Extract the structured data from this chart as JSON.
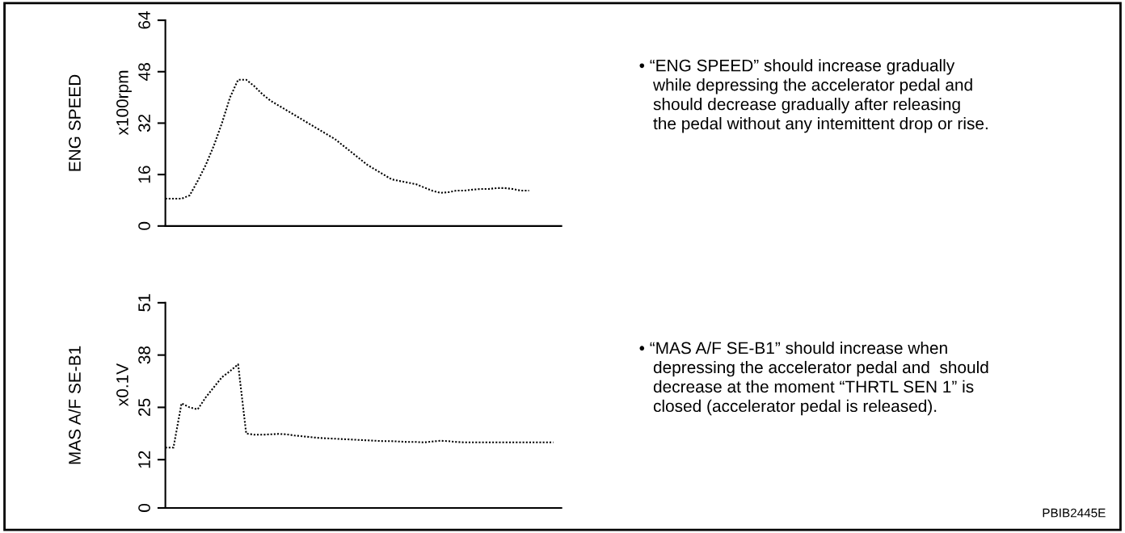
{
  "chart_data": [
    {
      "type": "line",
      "ylabel": "ENG SPEED",
      "categories": [
        null,
        null,
        null,
        null,
        null,
        null,
        null,
        null,
        null,
        null,
        null,
        null,
        null,
        null,
        null,
        null,
        null,
        null,
        null,
        null,
        null,
        null,
        null,
        null,
        null,
        null,
        null,
        null,
        null,
        null,
        null,
        null,
        null,
        null,
        null,
        null,
        null,
        null,
        null,
        null,
        null,
        null,
        null,
        null,
        null,
        null,
        null,
        null,
        null,
        null
      ],
      "series": [
        {
          "color": "#000000",
          "values": [
            8.5,
            8.5,
            8.5,
            9.5,
            14,
            19,
            25,
            32,
            40,
            45.5,
            45.5,
            43.5,
            41,
            39,
            37.5,
            36,
            34.5,
            33,
            31.5,
            30,
            28.5,
            27,
            25,
            23,
            21,
            19,
            17.5,
            16,
            14.5,
            14,
            13.5,
            13,
            12,
            11,
            10.3,
            10.5,
            11,
            11,
            11.3,
            11.5,
            11.5,
            11.8,
            11.8,
            11.5,
            11,
            11,
            null,
            null,
            null,
            null
          ]
        }
      ],
      "ylim": [
        0,
        64
      ],
      "yticks": [
        0,
        16,
        32,
        48,
        64
      ],
      "line_style": "dotted",
      "tick_labels": "y",
      "annotations": [
        "x100rpm",
        "• “ENG SPEED” should increase gradually\n   while depressing the accelerator pedal and\n   should decrease gradually after releasing\n   the pedal without any intemittent drop or rise."
      ]
    },
    {
      "type": "line",
      "ylabel": "MAS A/F SE-B1",
      "categories": [
        null,
        null,
        null,
        null,
        null,
        null,
        null,
        null,
        null,
        null,
        null,
        null,
        null,
        null,
        null,
        null,
        null,
        null,
        null,
        null,
        null,
        null,
        null,
        null,
        null,
        null,
        null,
        null,
        null,
        null,
        null,
        null,
        null,
        null,
        null,
        null,
        null,
        null,
        null,
        null,
        null,
        null,
        null,
        null,
        null,
        null,
        null,
        null,
        null,
        null
      ],
      "series": [
        {
          "color": "#000000",
          "values": [
            15,
            15,
            26,
            25,
            24.5,
            27.5,
            30,
            32.5,
            34,
            35.7,
            18.5,
            18.2,
            18.2,
            18.3,
            18.4,
            18.3,
            18,
            17.8,
            17.6,
            17.4,
            17.3,
            17.2,
            17.1,
            17,
            16.9,
            16.8,
            16.7,
            16.6,
            16.6,
            16.5,
            16.4,
            16.4,
            16.3,
            16.5,
            16.7,
            16.6,
            16.4,
            16.3,
            16.3,
            16.3,
            16.3,
            16.3,
            16.3,
            16.3,
            16.3,
            16.3,
            16.3,
            16.3,
            16.3,
            null
          ]
        }
      ],
      "ylim": [
        0,
        51
      ],
      "yticks": [
        0,
        12,
        25,
        38,
        51
      ],
      "line_style": "dotted",
      "tick_labels": "y",
      "annotations": [
        "x0.1V",
        "• “MAS A/F SE-B1” should increase when\n   depressing the accelerator pedal and  should\n   decrease at the moment “THRTL SEN 1” is\n   closed (accelerator pedal is released).",
        "PBIB2445E"
      ]
    }
  ]
}
